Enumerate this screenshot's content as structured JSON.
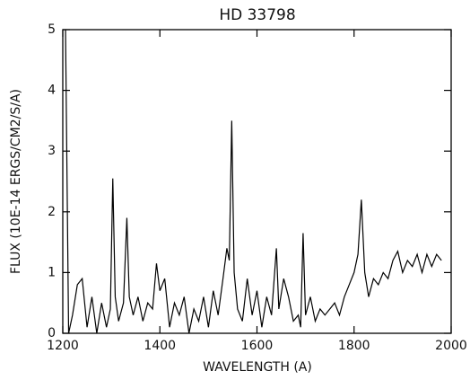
{
  "chart_data": {
    "type": "line",
    "title": "HD 33798",
    "x_label": "WAVELENGTH (A)",
    "y_label": "FLUX (10E-14 ERGS/CM2/S/A)",
    "x": [
      1200,
      1205,
      1212,
      1220,
      1230,
      1240,
      1250,
      1260,
      1270,
      1280,
      1290,
      1298,
      1303,
      1308,
      1315,
      1325,
      1332,
      1337,
      1345,
      1355,
      1365,
      1375,
      1385,
      1393,
      1400,
      1410,
      1420,
      1430,
      1440,
      1450,
      1460,
      1470,
      1480,
      1490,
      1500,
      1510,
      1520,
      1530,
      1538,
      1543,
      1548,
      1553,
      1560,
      1570,
      1580,
      1590,
      1600,
      1610,
      1620,
      1630,
      1640,
      1645,
      1655,
      1665,
      1675,
      1685,
      1690,
      1695,
      1700,
      1710,
      1720,
      1730,
      1740,
      1750,
      1760,
      1770,
      1780,
      1790,
      1800,
      1808,
      1815,
      1822,
      1830,
      1840,
      1850,
      1860,
      1870,
      1880,
      1890,
      1900,
      1910,
      1920,
      1930,
      1940,
      1950,
      1960,
      1970,
      1980
    ],
    "series": [
      {
        "color": "#000000",
        "values": [
          5.5,
          5.5,
          0,
          0.3,
          0.8,
          0.9,
          0.1,
          0.6,
          0,
          0.5,
          0.1,
          0.4,
          2.55,
          0.6,
          0.2,
          0.5,
          1.9,
          0.6,
          0.3,
          0.6,
          0.2,
          0.5,
          0.4,
          1.15,
          0.7,
          0.9,
          0.1,
          0.5,
          0.3,
          0.6,
          0,
          0.4,
          0.2,
          0.6,
          0.1,
          0.7,
          0.3,
          0.9,
          1.4,
          1.2,
          3.5,
          1.0,
          0.4,
          0.2,
          0.9,
          0.3,
          0.7,
          0.1,
          0.6,
          0.3,
          1.4,
          0.4,
          0.9,
          0.6,
          0.2,
          0.3,
          0.1,
          1.65,
          0.3,
          0.6,
          0.2,
          0.4,
          0.3,
          0.4,
          0.5,
          0.3,
          0.6,
          0.8,
          1.0,
          1.3,
          2.2,
          1.0,
          0.6,
          0.9,
          0.8,
          1.0,
          0.9,
          1.2,
          1.35,
          1.0,
          1.2,
          1.1,
          1.3,
          1.0,
          1.3,
          1.1,
          1.3,
          1.2
        ]
      }
    ],
    "xlim": [
      1200,
      2000
    ],
    "xticks": [
      1200,
      1400,
      1600,
      1800,
      2000
    ],
    "ylim": [
      0,
      5
    ],
    "yticks": [
      0,
      1,
      2,
      3,
      4,
      5
    ]
  }
}
